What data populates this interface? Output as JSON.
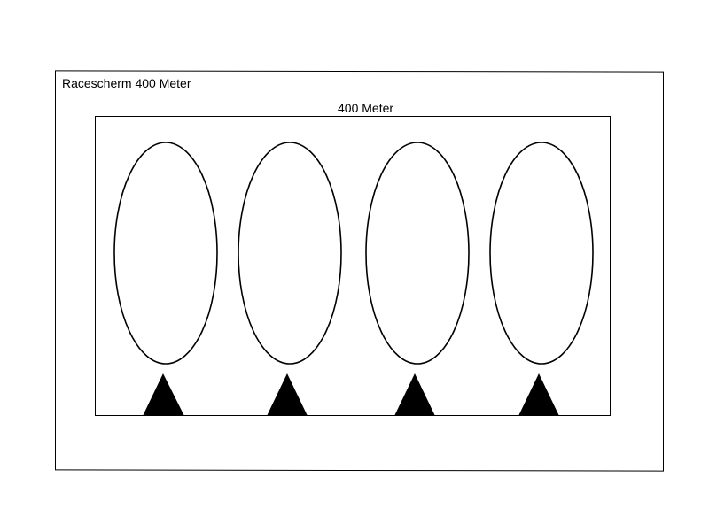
{
  "screen": {
    "title": "Racescherm 400 Meter"
  },
  "race_area": {
    "title": "400 Meter",
    "lanes": [
      {
        "shape": "ellipse",
        "marker": "triangle"
      },
      {
        "shape": "ellipse",
        "marker": "triangle"
      },
      {
        "shape": "ellipse",
        "marker": "triangle"
      },
      {
        "shape": "ellipse",
        "marker": "triangle"
      }
    ]
  },
  "colors": {
    "stroke": "#000000",
    "marker_fill": "#000000",
    "background": "#ffffff"
  }
}
